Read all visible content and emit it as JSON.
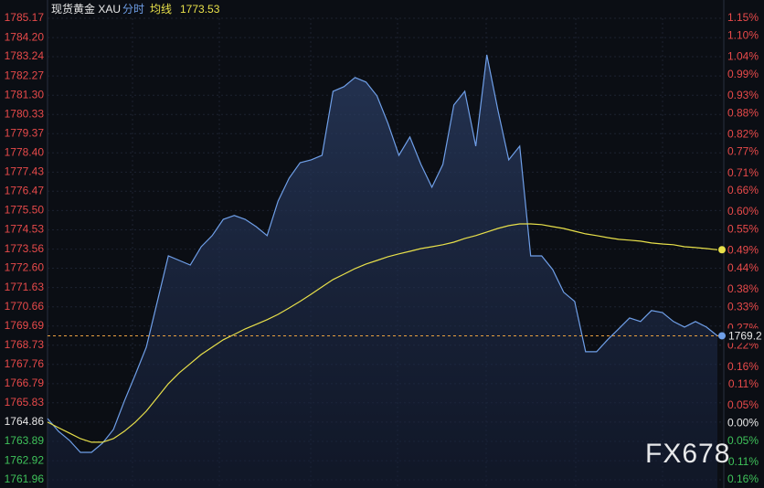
{
  "chart_data": {
    "type": "line",
    "title": "现货黄金 XAU",
    "avg_value": 1773.53,
    "last_price": 1769.2,
    "watermark": "FX678",
    "series": [
      {
        "name": "分时",
        "color": "#6f9fe8",
        "values": [
          1765.04,
          1764.4,
          1763.94,
          1763.34,
          1763.34,
          1763.8,
          1764.49,
          1765.92,
          1767.25,
          1768.63,
          1770.93,
          1773.22,
          1772.99,
          1772.76,
          1773.68,
          1774.24,
          1775.06,
          1775.25,
          1775.06,
          1774.69,
          1774.24,
          1775.98,
          1777.13,
          1777.91,
          1778.05,
          1778.28,
          1781.5,
          1781.73,
          1782.19,
          1781.96,
          1781.27,
          1779.89,
          1778.28,
          1779.2,
          1777.82,
          1776.67,
          1777.82,
          1780.81,
          1781.5,
          1778.74,
          1783.33,
          1780.58,
          1778.05,
          1778.74,
          1773.22,
          1773.22,
          1772.53,
          1771.39,
          1770.93,
          1768.4,
          1768.4,
          1769.0,
          1769.55,
          1770.1,
          1769.92,
          1770.47,
          1770.37,
          1769.92,
          1769.64,
          1769.92,
          1769.64,
          1769.2
        ]
      },
      {
        "name": "均线",
        "color": "#e8e04a",
        "values": [
          1764.86,
          1764.58,
          1764.31,
          1764.03,
          1763.85,
          1763.85,
          1764.03,
          1764.4,
          1764.86,
          1765.41,
          1766.1,
          1766.79,
          1767.34,
          1767.8,
          1768.26,
          1768.63,
          1769.0,
          1769.27,
          1769.55,
          1769.78,
          1770.01,
          1770.28,
          1770.6,
          1770.93,
          1771.29,
          1771.66,
          1772.03,
          1772.3,
          1772.58,
          1772.81,
          1772.99,
          1773.18,
          1773.32,
          1773.45,
          1773.59,
          1773.68,
          1773.78,
          1773.91,
          1774.1,
          1774.24,
          1774.42,
          1774.6,
          1774.74,
          1774.83,
          1774.83,
          1774.79,
          1774.69,
          1774.6,
          1774.46,
          1774.33,
          1774.24,
          1774.14,
          1774.05,
          1774.01,
          1773.96,
          1773.87,
          1773.82,
          1773.78,
          1773.68,
          1773.64,
          1773.59,
          1773.53
        ]
      }
    ],
    "ylim": [
      1761.96,
      1785.17
    ],
    "yticks": [
      1785.17,
      {
        "value": 1784.2,
        "label": "1784.20"
      },
      1783.24,
      1782.27,
      {
        "value": 1781.3,
        "label": "1781.30"
      },
      1780.33,
      1779.37,
      {
        "value": 1778.4,
        "label": "1778.40"
      },
      1777.43,
      1776.47,
      {
        "value": 1775.5,
        "label": "1775.50"
      },
      1774.53,
      1773.56,
      {
        "value": 1772.6,
        "label": "1772.60"
      },
      1771.63,
      1770.66,
      1769.69,
      1768.73,
      1767.76,
      1766.79,
      1765.83,
      1764.86,
      1763.89,
      1762.92,
      1761.96
    ],
    "y2lim": [
      -0.16,
      1.15
    ],
    "y2ticks": [
      {
        "value": 1.15,
        "label": "1.15%"
      },
      {
        "value": 1.1,
        "label": "1.10%"
      },
      {
        "value": 1.04,
        "label": "1.04%"
      },
      {
        "value": 0.99,
        "label": "0.99%"
      },
      {
        "value": 0.93,
        "label": "0.93%"
      },
      {
        "value": 0.88,
        "label": "0.88%"
      },
      {
        "value": 0.82,
        "label": "0.82%"
      },
      {
        "value": 0.77,
        "label": "0.77%"
      },
      {
        "value": 0.71,
        "label": "0.71%"
      },
      {
        "value": 0.66,
        "label": "0.66%"
      },
      {
        "value": 0.6,
        "label": "0.60%"
      },
      {
        "value": 0.55,
        "label": "0.55%"
      },
      {
        "value": 0.49,
        "label": "0.49%"
      },
      {
        "value": 0.44,
        "label": "0.44%"
      },
      {
        "value": 0.38,
        "label": "0.38%"
      },
      {
        "value": 0.33,
        "label": "0.33%"
      },
      {
        "value": 0.27,
        "label": "0.27%"
      },
      {
        "value": 0.22,
        "label": "0.22%"
      },
      {
        "value": 0.16,
        "label": "0.16%"
      },
      {
        "value": 0.11,
        "label": "0.11%"
      },
      {
        "value": 0.05,
        "label": "0.05%"
      },
      {
        "value": 0,
        "label": "0.00%"
      },
      {
        "value": -0.05,
        "label": "0.05%"
      },
      {
        "value": -0.11,
        "label": "0.11%"
      },
      {
        "value": -0.16,
        "label": "0.16%"
      }
    ],
    "grid": true
  }
}
